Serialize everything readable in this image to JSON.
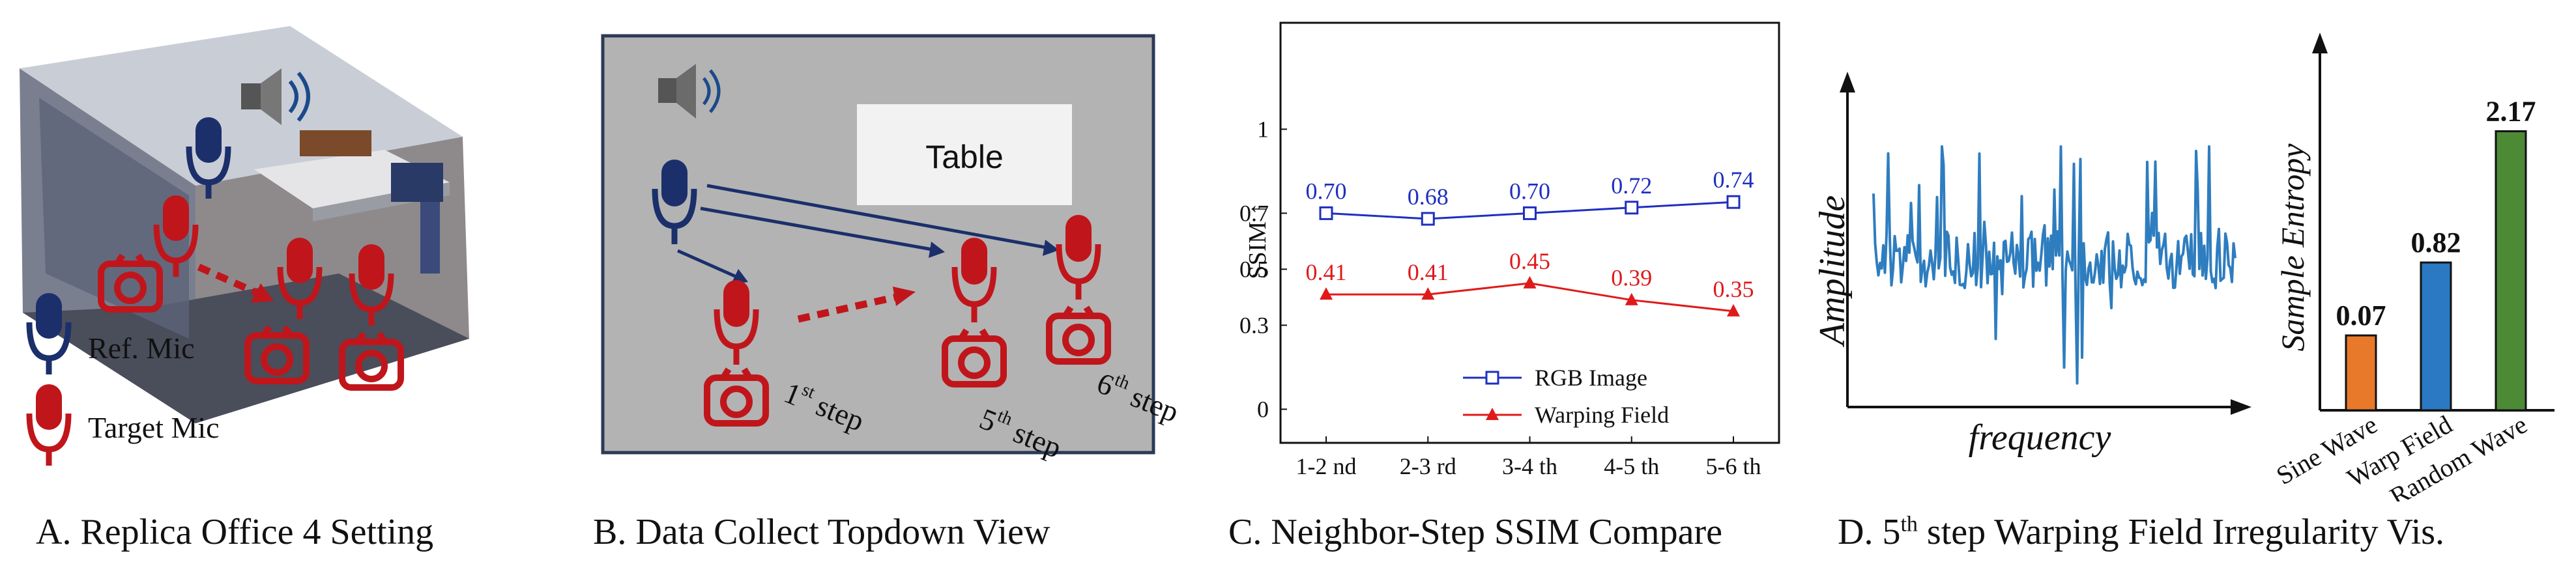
{
  "colors": {
    "ref_mic": "#1b2f6b",
    "target_mic": "#c0161b",
    "rgb_series": "#1f2fbf",
    "warp_series": "#e01a1a",
    "signal": "#2e7dbf",
    "bar_sine": "#e8792a",
    "bar_warp": "#2a79c2",
    "bar_random": "#4d8a36",
    "topdown_bg": "#b3b3b3"
  },
  "panel_a": {
    "caption": "A. Replica Office 4 Setting",
    "legend_ref": "Ref. Mic",
    "legend_target": "Target Mic",
    "icons": [
      "speaker-icon",
      "ref-mic-icon",
      "target-mic-icon",
      "camera-icon",
      "dashed-arrow-icon"
    ]
  },
  "panel_b": {
    "caption": "B. Data Collect Topdown View",
    "table_label": "Table",
    "step1": {
      "main": "1",
      "sup": "st",
      "rest": " step"
    },
    "step5": {
      "main": "5",
      "sup": "th",
      "rest": " step"
    },
    "step6": {
      "main": "6",
      "sup": "th",
      "rest": " step"
    }
  },
  "panel_d": {
    "caption_main": "D. 5",
    "caption_sup": "th",
    "caption_rest": " step Warping Field Irregularity Vis.",
    "signal_ylabel": "Amplitude",
    "signal_xlabel": "frequency"
  },
  "chart_data": [
    {
      "type": "line",
      "caption": "C. Neighbor-Step SSIM Compare",
      "ylabel": "SSIM ↑",
      "categories": [
        "1-2 nd",
        "2-3 rd",
        "3-4 th",
        "4-5 th",
        "5-6 th"
      ],
      "yticks": [
        "0",
        "0.3",
        "0.5",
        "0.7",
        "1"
      ],
      "ytick_values": [
        0,
        0.3,
        0.5,
        0.7,
        1
      ],
      "ylim": [
        -0.12,
        1.38
      ],
      "series": [
        {
          "name": "RGB Image",
          "values": [
            0.7,
            0.68,
            0.7,
            0.72,
            0.74
          ],
          "labels": [
            "0.70",
            "0.68",
            "0.70",
            "0.72",
            "0.74"
          ],
          "marker": "square"
        },
        {
          "name": "Warping Field",
          "values": [
            0.41,
            0.41,
            0.45,
            0.39,
            0.35
          ],
          "labels": [
            "0.41",
            "0.41",
            "0.45",
            "0.39",
            "0.35"
          ],
          "marker": "triangle"
        }
      ],
      "legend_position": "bottom-right",
      "grid": false
    },
    {
      "type": "bar",
      "ylabel": "Sample Entropy",
      "categories": [
        "Sine Wave",
        "Warp Field",
        "Random Wave"
      ],
      "values": [
        0.07,
        0.82,
        2.17
      ],
      "labels": [
        "0.07",
        "0.82",
        "2.17"
      ],
      "ylim": [
        -0.7,
        2.85
      ],
      "grid": false
    }
  ]
}
